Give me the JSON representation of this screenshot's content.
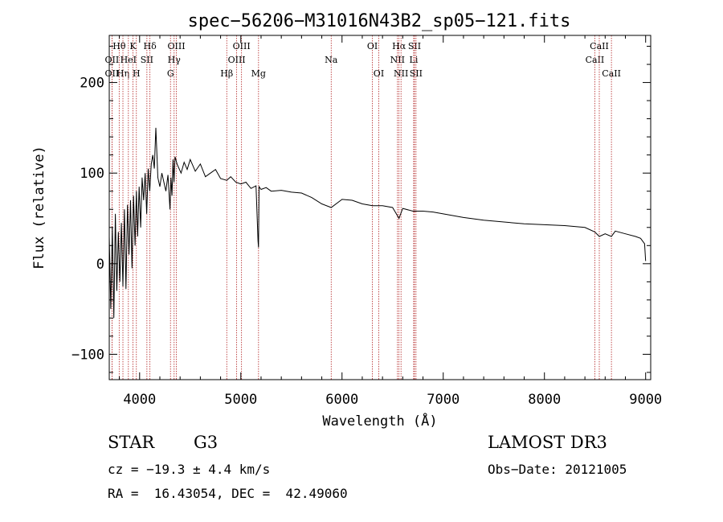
{
  "chart_data": {
    "type": "line",
    "title": "spec−56206−M31016N43B2_sp05−121.fits",
    "xlabel": "Wavelength (Å)",
    "ylabel": "Flux (relative)",
    "xlim": [
      3700,
      9050
    ],
    "ylim": [
      -128,
      252
    ],
    "x_ticks": [
      4000,
      5000,
      6000,
      7000,
      8000,
      9000
    ],
    "y_ticks": [
      -100,
      0,
      100,
      200
    ],
    "x_tick_labels": [
      "4000",
      "5000",
      "6000",
      "7000",
      "8000",
      "9000"
    ],
    "y_tick_labels": [
      "−100",
      "0",
      "100",
      "200"
    ],
    "series": [
      {
        "name": "flux",
        "color": "#000000",
        "x": [
          3700,
          3715,
          3730,
          3745,
          3760,
          3775,
          3790,
          3805,
          3820,
          3835,
          3850,
          3865,
          3880,
          3895,
          3910,
          3925,
          3940,
          3955,
          3968,
          3980,
          3995,
          4010,
          4025,
          4040,
          4055,
          4070,
          4085,
          4100,
          4115,
          4130,
          4145,
          4160,
          4180,
          4200,
          4220,
          4240,
          4260,
          4280,
          4300,
          4310,
          4320,
          4330,
          4340,
          4350,
          4370,
          4390,
          4410,
          4440,
          4470,
          4500,
          4550,
          4600,
          4650,
          4700,
          4750,
          4800,
          4861,
          4900,
          4950,
          5000,
          5050,
          5100,
          5150,
          5170,
          5175,
          5180,
          5200,
          5250,
          5300,
          5400,
          5500,
          5600,
          5700,
          5800,
          5893,
          6000,
          6100,
          6200,
          6300,
          6400,
          6500,
          6563,
          6600,
          6700,
          6800,
          6900,
          7000,
          7200,
          7400,
          7600,
          7800,
          8000,
          8200,
          8400,
          8498,
          8542,
          8600,
          8662,
          8700,
          8800,
          8900,
          8950,
          8990,
          9000
        ],
        "y": [
          30,
          -50,
          40,
          -60,
          55,
          -30,
          35,
          -20,
          45,
          -25,
          60,
          -28,
          65,
          10,
          70,
          -5,
          75,
          20,
          80,
          30,
          85,
          40,
          95,
          70,
          100,
          55,
          105,
          80,
          110,
          120,
          105,
          150,
          95,
          85,
          100,
          90,
          80,
          98,
          60,
          95,
          75,
          115,
          90,
          118,
          110,
          105,
          100,
          112,
          104,
          115,
          102,
          110,
          96,
          100,
          104,
          94,
          92,
          96,
          90,
          88,
          90,
          83,
          86,
          25,
          18,
          85,
          82,
          84,
          80,
          81,
          79,
          78,
          73,
          66,
          62,
          71,
          70,
          66,
          64,
          64,
          62,
          50,
          61,
          58,
          58,
          57,
          55,
          51,
          48,
          46,
          44,
          43,
          42,
          40,
          35,
          30,
          33,
          30,
          36,
          33,
          30,
          28,
          22,
          3
        ]
      }
    ],
    "annotations": {
      "line_markers": [
        {
          "name": "OII",
          "wavelength": 3727,
          "row": 2
        },
        {
          "name": "OII",
          "wavelength": 3727,
          "row": 3
        },
        {
          "name": "Hθ",
          "wavelength": 3798,
          "row": 1
        },
        {
          "name": "Hη",
          "wavelength": 3835,
          "row": 3
        },
        {
          "name": "HeI",
          "wavelength": 3889,
          "row": 2
        },
        {
          "name": "K",
          "wavelength": 3934,
          "row": 1
        },
        {
          "name": "H",
          "wavelength": 3968,
          "row": 3
        },
        {
          "name": "SII",
          "wavelength": 4072,
          "row": 2
        },
        {
          "name": "Hδ",
          "wavelength": 4102,
          "row": 1
        },
        {
          "name": "G",
          "wavelength": 4305,
          "row": 3
        },
        {
          "name": "Hγ",
          "wavelength": 4341,
          "row": 2
        },
        {
          "name": "OIII",
          "wavelength": 4363,
          "row": 1
        },
        {
          "name": "Hβ",
          "wavelength": 4861,
          "row": 3
        },
        {
          "name": "OIII",
          "wavelength": 4959,
          "row": 2
        },
        {
          "name": "OIII",
          "wavelength": 5007,
          "row": 1
        },
        {
          "name": "Mg",
          "wavelength": 5175,
          "row": 3
        },
        {
          "name": "Na",
          "wavelength": 5893,
          "row": 2
        },
        {
          "name": "OI",
          "wavelength": 6300,
          "row": 1
        },
        {
          "name": "OI",
          "wavelength": 6363,
          "row": 3
        },
        {
          "name": "NII",
          "wavelength": 6548,
          "row": 2
        },
        {
          "name": "Hα",
          "wavelength": 6563,
          "row": 1
        },
        {
          "name": "NII",
          "wavelength": 6583,
          "row": 3
        },
        {
          "name": "SII",
          "wavelength": 6716,
          "row": 1
        },
        {
          "name": "Li",
          "wavelength": 6708,
          "row": 2
        },
        {
          "name": "SII",
          "wavelength": 6731,
          "row": 3
        },
        {
          "name": "CaII",
          "wavelength": 8498,
          "row": 2
        },
        {
          "name": "CaII",
          "wavelength": 8542,
          "row": 1
        },
        {
          "name": "CaII",
          "wavelength": 8662,
          "row": 3
        }
      ]
    }
  },
  "info": {
    "object_class": "STAR",
    "subclass": "G3",
    "survey": "LAMOST DR3",
    "velocity": "cz = −19.3 ± 4.4 km/s",
    "obs_date": "Obs−Date: 20121005",
    "coords": "RA =  16.43054, DEC =  42.49060"
  },
  "colors": {
    "spectrum": "#000000",
    "line_marker": "#b22222"
  }
}
